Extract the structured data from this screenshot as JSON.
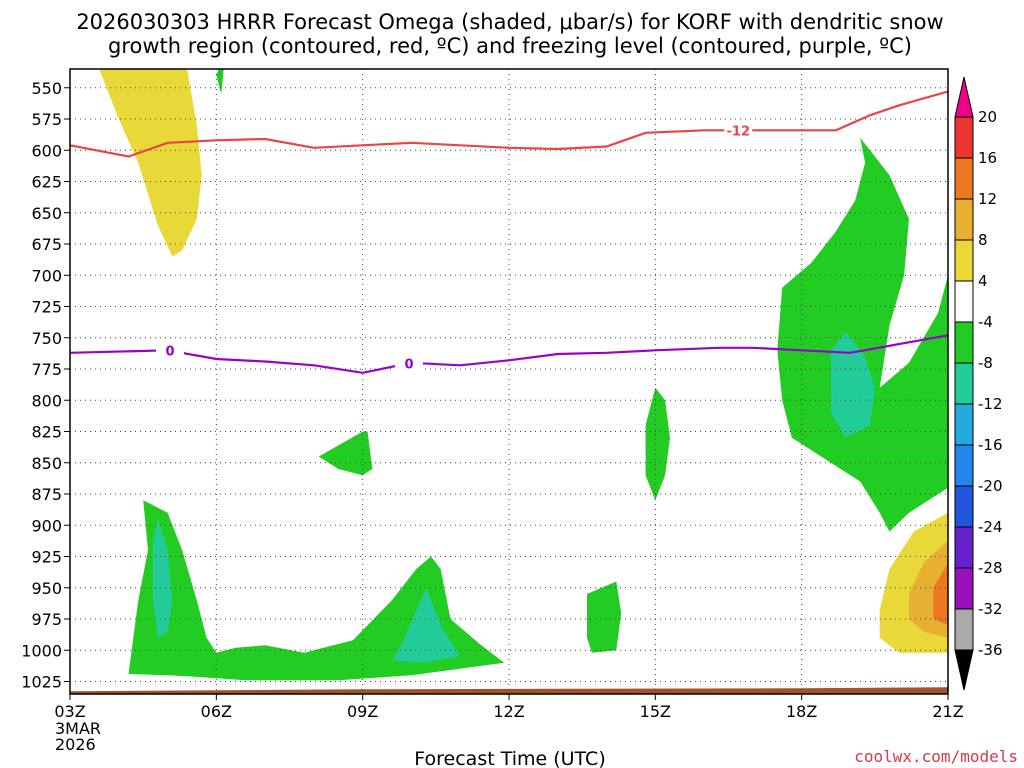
{
  "title": {
    "line1": "2026030303 HRRR Forecast Omega (shaded, μbar/s) for KORF with dendritic snow",
    "line2": "growth region (contoured, red, ºC) and freezing level (contoured, purple, ºC)"
  },
  "credit": "coolwx.com/models",
  "chart_data": {
    "type": "contour",
    "xlabel": "Forecast Time (UTC)",
    "ylabel": "",
    "x_ticks": [
      "03Z",
      "06Z",
      "09Z",
      "12Z",
      "15Z",
      "18Z",
      "21Z"
    ],
    "x_tick_values": [
      0,
      3,
      6,
      9,
      12,
      15,
      18
    ],
    "x_start_date_lines": [
      "3MAR",
      "2026"
    ],
    "xlim": [
      0,
      18
    ],
    "y_ticks": [
      550,
      575,
      600,
      625,
      650,
      675,
      700,
      725,
      750,
      775,
      800,
      825,
      850,
      875,
      900,
      925,
      950,
      975,
      1000,
      1025
    ],
    "ylim": [
      1035,
      535
    ],
    "y_scale": "pressure (inverted)",
    "grid": "dotted",
    "colorbar": {
      "labels": [
        "20",
        "16",
        "12",
        "8",
        "4",
        "-4",
        "-8",
        "-12",
        "-16",
        "-20",
        "-24",
        "-28",
        "-32",
        "-36"
      ],
      "colors": [
        "#ee0088",
        "#ee3333",
        "#ee7722",
        "#e8b030",
        "#e8d838",
        "#ffffff",
        "#22cc22",
        "#22cc99",
        "#22aadd",
        "#2288ee",
        "#2255dd",
        "#6622cc",
        "#9911bb",
        "#aaaaaa",
        "#000000"
      ]
    },
    "contours": [
      {
        "color": "#e84545",
        "label": "-12",
        "points": [
          [
            0,
            596
          ],
          [
            1.2,
            605
          ],
          [
            2,
            594
          ],
          [
            3,
            592
          ],
          [
            4,
            591
          ],
          [
            5,
            598
          ],
          [
            6,
            596
          ],
          [
            7,
            594
          ],
          [
            8,
            596
          ],
          [
            9,
            598
          ],
          [
            10,
            599
          ],
          [
            11,
            597
          ],
          [
            11.8,
            586
          ],
          [
            13,
            584
          ],
          [
            15.7,
            584
          ],
          [
            16.4,
            572
          ],
          [
            17,
            564
          ],
          [
            18,
            553
          ]
        ]
      },
      {
        "color": "#9900cc",
        "label": "0",
        "points": [
          [
            0,
            762
          ],
          [
            2,
            760
          ],
          [
            3,
            767
          ],
          [
            4,
            769
          ],
          [
            5,
            772
          ],
          [
            6,
            778
          ],
          [
            7,
            770
          ],
          [
            8,
            772
          ],
          [
            9,
            768
          ],
          [
            10,
            763
          ],
          [
            11,
            762
          ],
          [
            12,
            760
          ],
          [
            13.3,
            758
          ],
          [
            14,
            758
          ],
          [
            15,
            760
          ],
          [
            16,
            762
          ],
          [
            18,
            748
          ]
        ]
      }
    ],
    "shaded_regions": [
      {
        "value": "4 to 8",
        "color": "#e8d838",
        "points": [
          [
            0.6,
            535
          ],
          [
            2.4,
            535
          ],
          [
            2.6,
            580
          ],
          [
            2.7,
            620
          ],
          [
            2.6,
            655
          ],
          [
            2.3,
            680
          ],
          [
            2.1,
            685
          ],
          [
            1.8,
            660
          ],
          [
            1.4,
            610
          ],
          [
            1.0,
            575
          ],
          [
            0.7,
            545
          ]
        ]
      },
      {
        "value": "-4 to -8",
        "color": "#22cc22",
        "points": [
          [
            3.05,
            535
          ],
          [
            3.15,
            535
          ],
          [
            3.1,
            555
          ],
          [
            3.0,
            540
          ]
        ]
      },
      {
        "value": "-4 to -8",
        "color": "#22cc22",
        "points": [
          [
            14.6,
            710
          ],
          [
            15.2,
            690
          ],
          [
            15.7,
            665
          ],
          [
            16.1,
            640
          ],
          [
            16.3,
            610
          ],
          [
            16.2,
            590
          ],
          [
            16.8,
            620
          ],
          [
            17.2,
            655
          ],
          [
            17.1,
            700
          ],
          [
            16.8,
            740
          ],
          [
            16.6,
            790
          ],
          [
            17.2,
            770
          ],
          [
            17.8,
            730
          ],
          [
            18,
            700
          ],
          [
            18,
            870
          ],
          [
            17.8,
            875
          ],
          [
            17.2,
            890
          ],
          [
            16.8,
            905
          ],
          [
            16.6,
            890
          ],
          [
            16.2,
            865
          ],
          [
            15.4,
            845
          ],
          [
            14.8,
            830
          ],
          [
            14.6,
            800
          ],
          [
            14.5,
            760
          ]
        ]
      },
      {
        "value": "-8 to -12",
        "color": "#22cc99",
        "points": [
          [
            15.6,
            760
          ],
          [
            15.9,
            745
          ],
          [
            16.3,
            765
          ],
          [
            16.5,
            790
          ],
          [
            16.4,
            820
          ],
          [
            15.9,
            830
          ],
          [
            15.6,
            810
          ]
        ]
      },
      {
        "value": "-4 to -8",
        "color": "#22cc22",
        "points": [
          [
            6.0,
            825
          ],
          [
            6.1,
            825
          ],
          [
            6.2,
            855
          ],
          [
            6.0,
            860
          ],
          [
            5.5,
            855
          ],
          [
            5.1,
            845
          ]
        ]
      },
      {
        "value": "-4 to -8",
        "color": "#22cc22",
        "points": [
          [
            12.0,
            790
          ],
          [
            12.2,
            800
          ],
          [
            12.3,
            830
          ],
          [
            12.2,
            860
          ],
          [
            12.0,
            880
          ],
          [
            11.8,
            860
          ],
          [
            11.8,
            820
          ]
        ]
      },
      {
        "value": "-4 to -8",
        "color": "#22cc22",
        "points": [
          [
            10.6,
            955
          ],
          [
            11.2,
            945
          ],
          [
            11.3,
            970
          ],
          [
            11.2,
            1000
          ],
          [
            10.7,
            1002
          ],
          [
            10.6,
            990
          ]
        ]
      },
      {
        "value": "-4 to -8",
        "color": "#22cc22",
        "points": [
          [
            1.5,
            880
          ],
          [
            2.0,
            890
          ],
          [
            2.3,
            920
          ],
          [
            2.6,
            960
          ],
          [
            2.8,
            990
          ],
          [
            3.0,
            1002
          ],
          [
            3.4,
            998
          ],
          [
            4.0,
            996
          ],
          [
            4.8,
            1002
          ],
          [
            5.8,
            992
          ],
          [
            6.6,
            960
          ],
          [
            7.1,
            935
          ],
          [
            7.4,
            925
          ],
          [
            7.6,
            935
          ],
          [
            7.8,
            975
          ],
          [
            8.4,
            995
          ],
          [
            8.9,
            1010
          ],
          [
            7.0,
            1020
          ],
          [
            5.5,
            1024
          ],
          [
            3.6,
            1024
          ],
          [
            2.5,
            1021
          ],
          [
            2.0,
            1020
          ],
          [
            1.2,
            1019
          ],
          [
            1.4,
            960
          ],
          [
            1.6,
            920
          ]
        ]
      },
      {
        "value": "-8 to -12",
        "color": "#22cc99",
        "points": [
          [
            1.8,
            895
          ],
          [
            2.0,
            920
          ],
          [
            2.1,
            960
          ],
          [
            2.0,
            985
          ],
          [
            1.8,
            990
          ],
          [
            1.7,
            960
          ],
          [
            1.7,
            915
          ]
        ]
      },
      {
        "value": "-8 to -12",
        "color": "#22cc99",
        "points": [
          [
            7.3,
            950
          ],
          [
            7.6,
            980
          ],
          [
            8.0,
            1005
          ],
          [
            7.2,
            1010
          ],
          [
            6.6,
            1008
          ],
          [
            6.8,
            995
          ]
        ]
      },
      {
        "value": "4 to 8",
        "color": "#e8d838",
        "points": [
          [
            18,
            890
          ],
          [
            17.3,
            905
          ],
          [
            16.8,
            935
          ],
          [
            16.6,
            968
          ],
          [
            16.6,
            990
          ],
          [
            17.0,
            1002
          ],
          [
            18,
            1002
          ]
        ]
      },
      {
        "value": "8 to 12",
        "color": "#e8b030",
        "points": [
          [
            18,
            912
          ],
          [
            17.5,
            930
          ],
          [
            17.2,
            955
          ],
          [
            17.2,
            975
          ],
          [
            17.5,
            985
          ],
          [
            18,
            990
          ]
        ]
      },
      {
        "value": "12 to 16",
        "color": "#ee7722",
        "points": [
          [
            18,
            930
          ],
          [
            17.7,
            950
          ],
          [
            17.7,
            975
          ],
          [
            18,
            980
          ]
        ]
      }
    ],
    "ground_band": {
      "color": "#a0522d",
      "top": 1032
    }
  }
}
